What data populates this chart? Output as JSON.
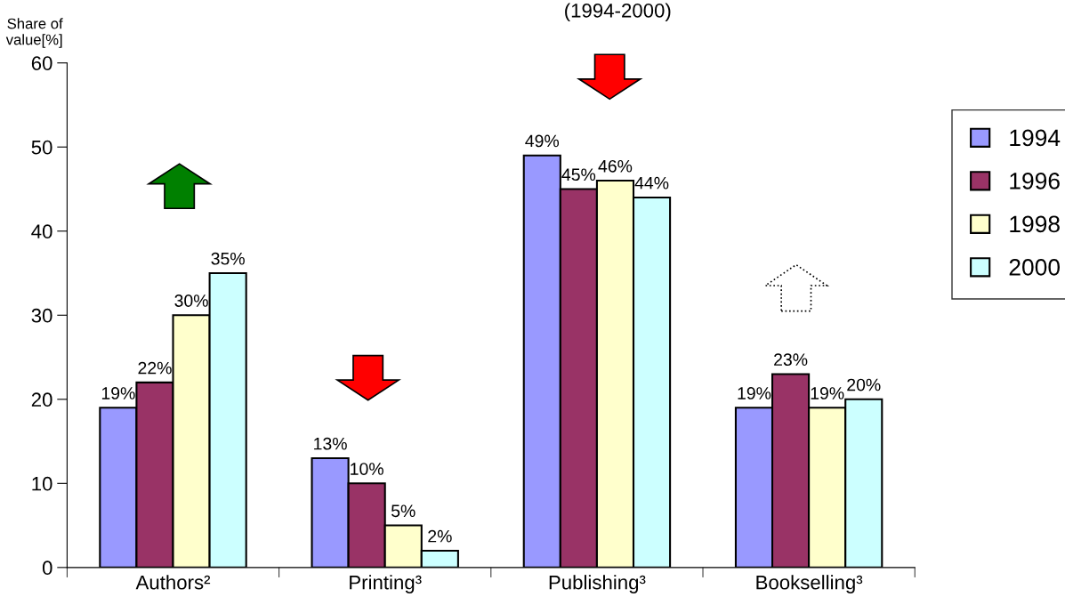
{
  "chart_data": {
    "type": "bar",
    "title": "(1994-2000)",
    "ylabel": "Share of\nvalue[%]",
    "categories": [
      "Authors²",
      "Printing³",
      "Publishing³",
      "Bookselling³"
    ],
    "series": [
      {
        "name": "1994",
        "color": "#9999ff",
        "values": [
          19,
          13,
          49,
          19
        ],
        "value_labels": [
          "19%",
          "13%",
          "49%",
          "19%"
        ]
      },
      {
        "name": "1996",
        "color": "#993366",
        "values": [
          22,
          10,
          45,
          23
        ],
        "value_labels": [
          "22%",
          "10%",
          "45%",
          "23%"
        ]
      },
      {
        "name": "1998",
        "color": "#ffffcc",
        "values": [
          30,
          5,
          46,
          19
        ],
        "value_labels": [
          "30%",
          "5%",
          "46%",
          "19%"
        ]
      },
      {
        "name": "2000",
        "color": "#ccffff",
        "values": [
          35,
          2,
          44,
          20
        ],
        "value_labels": [
          "35%",
          "2%",
          "44%",
          "20%"
        ]
      }
    ],
    "ylim": [
      0,
      60
    ],
    "yticks": [
      0,
      10,
      20,
      30,
      40,
      50,
      60
    ],
    "grid": false,
    "legend": "right"
  }
}
